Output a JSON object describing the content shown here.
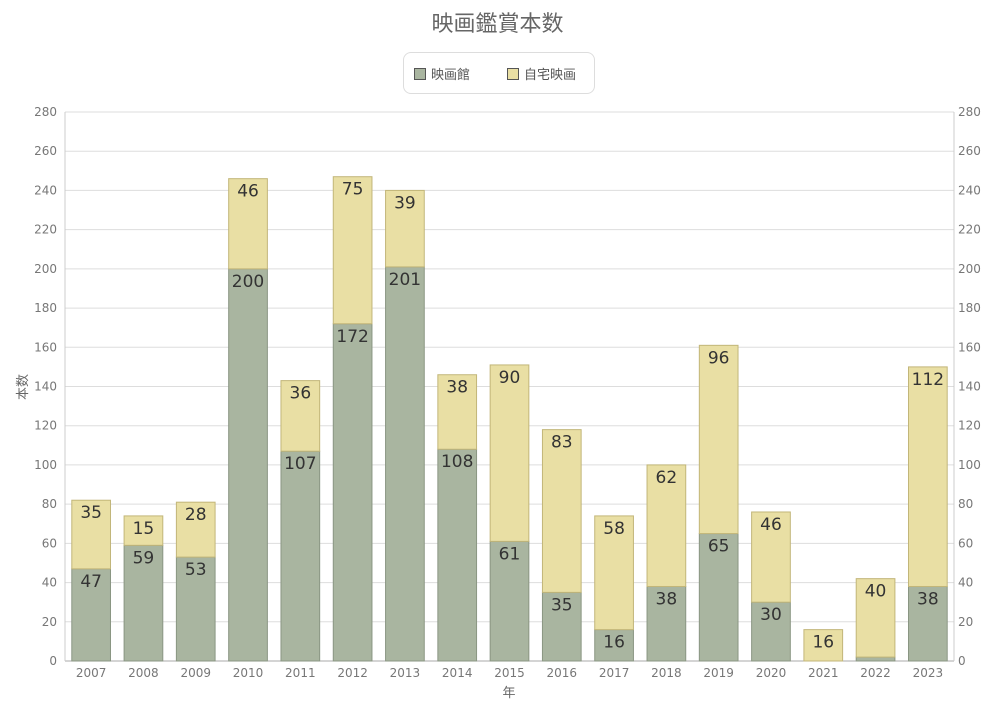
{
  "chart_data": {
    "type": "bar",
    "stacked": true,
    "title": "映画鑑賞本数",
    "xlabel": "年",
    "ylabel": "本数",
    "ylim": [
      0,
      280
    ],
    "ytick_step": 20,
    "grid": true,
    "legend_position": "top",
    "categories": [
      "2007",
      "2008",
      "2009",
      "2010",
      "2011",
      "2012",
      "2013",
      "2014",
      "2015",
      "2016",
      "2017",
      "2018",
      "2019",
      "2020",
      "2021",
      "2022",
      "2023"
    ],
    "series": [
      {
        "name": "映画館",
        "color": "#a9b5a0",
        "values": [
          47,
          59,
          53,
          200,
          107,
          172,
          201,
          108,
          61,
          35,
          16,
          38,
          65,
          30,
          0,
          2,
          38
        ],
        "labels": [
          "47",
          "59",
          "53",
          "200",
          "107",
          "172",
          "201",
          "108",
          "61",
          "35",
          "16",
          "38",
          "65",
          "30",
          "",
          "",
          "38"
        ]
      },
      {
        "name": "自宅映画",
        "color": "#e9dfa4",
        "values": [
          35,
          15,
          28,
          46,
          36,
          75,
          39,
          38,
          90,
          83,
          58,
          62,
          96,
          46,
          16,
          40,
          112
        ],
        "labels": [
          "35",
          "15",
          "28",
          "46",
          "36",
          "75",
          "39",
          "38",
          "90",
          "83",
          "58",
          "62",
          "96",
          "46",
          "16",
          "40",
          "112"
        ]
      }
    ]
  }
}
